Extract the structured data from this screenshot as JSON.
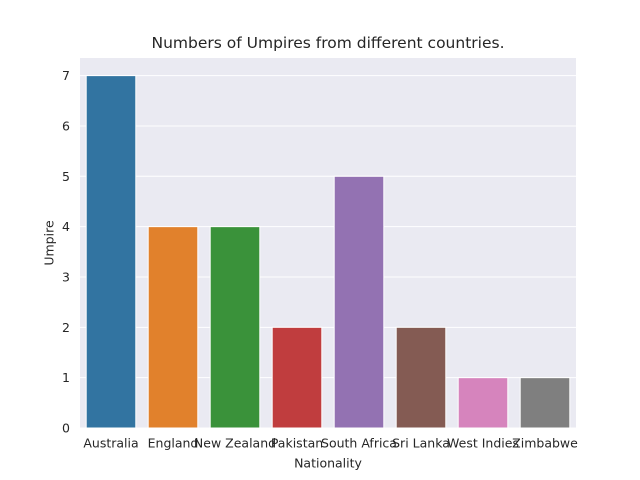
{
  "chart_data": {
    "type": "bar",
    "title": "Numbers of Umpires from different countries.",
    "xlabel": "Nationality",
    "ylabel": "Umpire",
    "categories": [
      "Australia",
      "England",
      "New Zealand",
      "Pakistan",
      "South Africa",
      "Sri Lanka",
      "West Indies",
      "Zimbabwe"
    ],
    "values": [
      7,
      4,
      4,
      2,
      5,
      2,
      1,
      1
    ],
    "colors": [
      "#3274a1",
      "#e1812c",
      "#3a923a",
      "#c03d3e",
      "#9372b2",
      "#845b53",
      "#d684bd",
      "#7f7f7f"
    ],
    "ylim": [
      0,
      7.35
    ],
    "yticks": [
      "0",
      "1",
      "2",
      "3",
      "4",
      "5",
      "6",
      "7"
    ],
    "grid": true,
    "background": "#eaeaf2"
  }
}
